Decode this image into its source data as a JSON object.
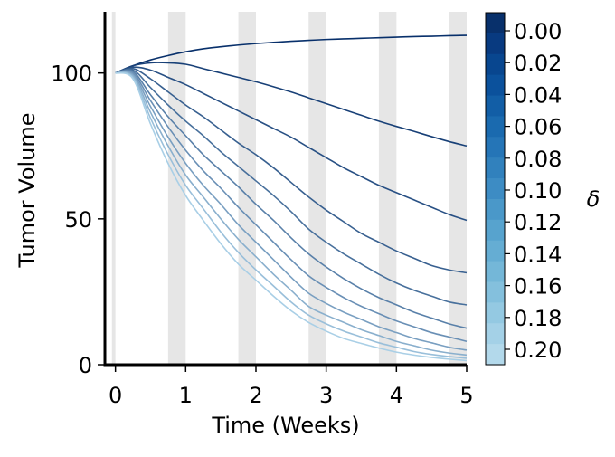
{
  "chart_data": {
    "type": "line",
    "xlabel": "Time (Weeks)",
    "ylabel": "Tumor Volume",
    "xlim": [
      -0.15,
      5
    ],
    "ylim": [
      0,
      121
    ],
    "xticks": [
      "0",
      "1",
      "2",
      "3",
      "4",
      "5"
    ],
    "yticks": [
      "0",
      "50",
      "100"
    ],
    "treatment_bands": [
      [
        -0.05,
        0.0
      ],
      [
        0.75,
        1.0
      ],
      [
        1.75,
        2.0
      ],
      [
        2.75,
        3.0
      ],
      [
        3.75,
        4.0
      ],
      [
        4.75,
        5.0
      ]
    ],
    "x": [
      0,
      0.25,
      0.5,
      0.75,
      1,
      1.25,
      1.5,
      1.75,
      2,
      2.25,
      2.5,
      2.75,
      3,
      3.25,
      3.5,
      3.75,
      4,
      4.25,
      4.5,
      4.75,
      5
    ],
    "series": [
      {
        "delta": 0.0,
        "values": [
          100,
          102.5,
          104.5,
          106,
          107.3,
          108.3,
          109,
          109.6,
          110.1,
          110.5,
          110.9,
          111.2,
          111.5,
          111.7,
          111.9,
          112.1,
          112.3,
          112.5,
          112.6,
          112.8,
          112.9
        ]
      },
      {
        "delta": 0.02,
        "values": [
          100,
          102.5,
          103.5,
          103.5,
          103,
          101.5,
          100,
          98.5,
          97,
          95.3,
          93.5,
          91.5,
          89.5,
          87.5,
          85.5,
          83.5,
          81.7,
          80,
          78.2,
          76.5,
          75
        ]
      },
      {
        "delta": 0.04,
        "values": [
          100,
          102,
          101,
          98.5,
          96,
          93,
          90,
          87,
          84,
          81,
          78,
          74.5,
          71,
          67.5,
          64.5,
          61.5,
          59,
          56.5,
          54,
          51.5,
          49.5
        ]
      },
      {
        "delta": 0.06,
        "values": [
          100,
          101.5,
          98,
          93.5,
          89,
          85,
          80.5,
          76,
          72,
          67.5,
          62.5,
          57.5,
          53,
          49,
          45,
          42,
          39,
          36.5,
          34,
          32.5,
          31.5
        ]
      },
      {
        "delta": 0.08,
        "values": [
          100,
          101,
          95,
          89,
          83.5,
          78.5,
          73,
          68,
          63,
          58,
          52.5,
          46.5,
          42,
          38,
          34.5,
          31,
          28,
          25.5,
          23.5,
          21.5,
          20.5
        ]
      },
      {
        "delta": 0.1,
        "values": [
          100,
          100.5,
          92.5,
          85,
          78.5,
          72,
          66.5,
          61,
          55,
          49.5,
          43.5,
          38,
          33.5,
          29.5,
          26,
          23,
          20.5,
          18,
          16,
          14,
          12.5
        ]
      },
      {
        "delta": 0.12,
        "values": [
          100,
          100,
          90.5,
          81.5,
          73.5,
          66.5,
          60.5,
          54,
          48,
          42,
          36,
          30.5,
          26.5,
          23,
          20,
          17.5,
          15,
          13,
          11,
          9.5,
          8
        ]
      },
      {
        "delta": 0.14,
        "values": [
          100,
          99.5,
          88.5,
          78,
          69,
          61.5,
          55,
          48,
          42,
          36,
          30,
          24.5,
          21,
          18,
          15.5,
          13,
          11,
          9,
          7.5,
          6,
          5
        ]
      },
      {
        "delta": 0.16,
        "values": [
          100,
          99,
          86.5,
          75,
          65,
          57.5,
          50,
          43,
          37,
          31,
          25.5,
          20,
          17,
          14.5,
          12,
          10,
          8,
          6.5,
          5,
          4,
          3.3
        ]
      },
      {
        "delta": 0.18,
        "values": [
          100,
          98.5,
          84.5,
          72,
          61.5,
          53.5,
          45.5,
          38.5,
          32.5,
          27,
          21.5,
          17,
          14,
          11.5,
          9.5,
          7.5,
          6,
          4.5,
          3.5,
          2.8,
          2.2
        ]
      },
      {
        "delta": 0.2,
        "values": [
          100,
          98,
          82.5,
          69,
          58,
          49.5,
          41.5,
          34.5,
          29,
          23.5,
          18.5,
          14.5,
          11.5,
          9,
          7.3,
          5.7,
          4.3,
          3.3,
          2.5,
          1.9,
          1.4
        ]
      }
    ],
    "colorbar": {
      "label": "δ",
      "ticks": [
        "0.00",
        "0.02",
        "0.04",
        "0.06",
        "0.08",
        "0.10",
        "0.12",
        "0.14",
        "0.16",
        "0.18",
        "0.20"
      ],
      "colors": [
        "#08306b",
        "#083a80",
        "#08468f",
        "#0b519c",
        "#125ea6",
        "#1a6aaf",
        "#2575b7",
        "#3181bd",
        "#3d8cc4",
        "#4a98c9",
        "#57a3ce",
        "#65add3",
        "#74b7d8",
        "#84c0dd",
        "#94c9e2",
        "#a4d1e7",
        "#b3d9eb"
      ],
      "line_dark": "#08306b",
      "line_light": "#a9cfe6"
    },
    "band_color": "#e6e6e6"
  }
}
